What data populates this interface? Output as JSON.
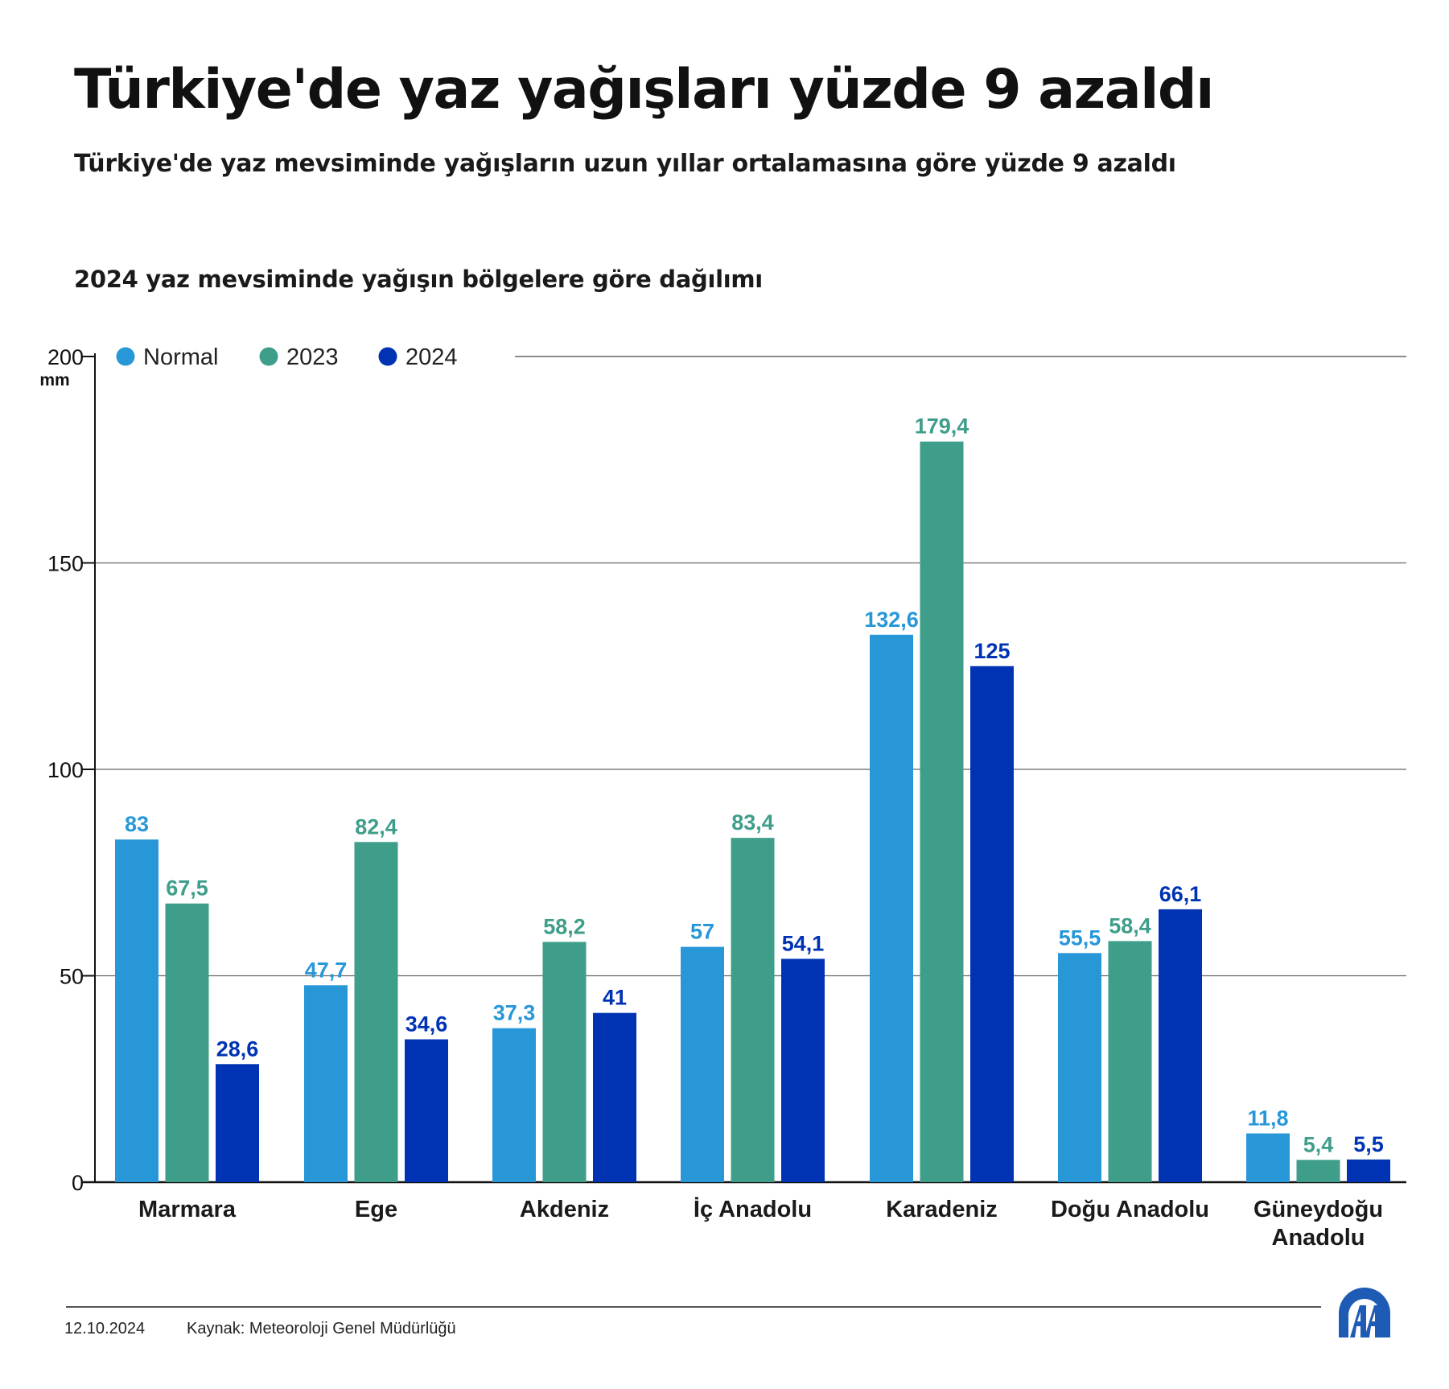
{
  "header": {
    "title": "Türkiye'de yaz yağışları yüzde 9 azaldı",
    "subtitle": "Türkiye'de yaz mevsiminde yağışların uzun yıllar ortalamasına göre yüzde 9 azaldı",
    "chart_title": "2024 yaz mevsiminde yağışın bölgelere göre dağılımı"
  },
  "chart_data": {
    "type": "bar",
    "title": "2024 yaz mevsiminde yağışın bölgelere göre dağılımı",
    "ylabel": "mm",
    "ylim": [
      0,
      200
    ],
    "yticks": [
      0,
      50,
      100,
      150,
      200
    ],
    "grid": true,
    "legend_position": "top-left",
    "categories": [
      "Marmara",
      "Ege",
      "Akdeniz",
      "İç Anadolu",
      "Karadeniz",
      "Doğu Anadolu",
      "Güneydoğu Anadolu"
    ],
    "category_lines": [
      [
        "Marmara"
      ],
      [
        "Ege"
      ],
      [
        "Akdeniz"
      ],
      [
        "İç Anadolu"
      ],
      [
        "Karadeniz"
      ],
      [
        "Doğu Anadolu"
      ],
      [
        "Güneydoğu",
        "Anadolu"
      ]
    ],
    "series": [
      {
        "name": "Normal",
        "color": "#2897d8",
        "values": [
          83,
          47.7,
          37.3,
          57,
          132.6,
          55.5,
          11.8
        ],
        "labels": [
          "83",
          "47,7",
          "37,3",
          "57",
          "132,6",
          "55,5",
          "11,8"
        ]
      },
      {
        "name": "2023",
        "color": "#3e9e8a",
        "values": [
          67.5,
          82.4,
          58.2,
          83.4,
          179.4,
          58.4,
          5.4
        ],
        "labels": [
          "67,5",
          "82,4",
          "58,2",
          "83,4",
          "179,4",
          "58,4",
          "5,4"
        ]
      },
      {
        "name": "2024",
        "color": "#0033b4",
        "values": [
          28.6,
          34.6,
          41,
          54.1,
          125,
          66.1,
          5.5
        ],
        "labels": [
          "28,6",
          "34,6",
          "41",
          "54,1",
          "125",
          "66,1",
          "5,5"
        ]
      }
    ]
  },
  "footer": {
    "date": "12.10.2024",
    "source": "Kaynak: Meteoroloji Genel Müdürlüğü",
    "logo_text": "AA",
    "logo_color": "#1d5bb5"
  }
}
